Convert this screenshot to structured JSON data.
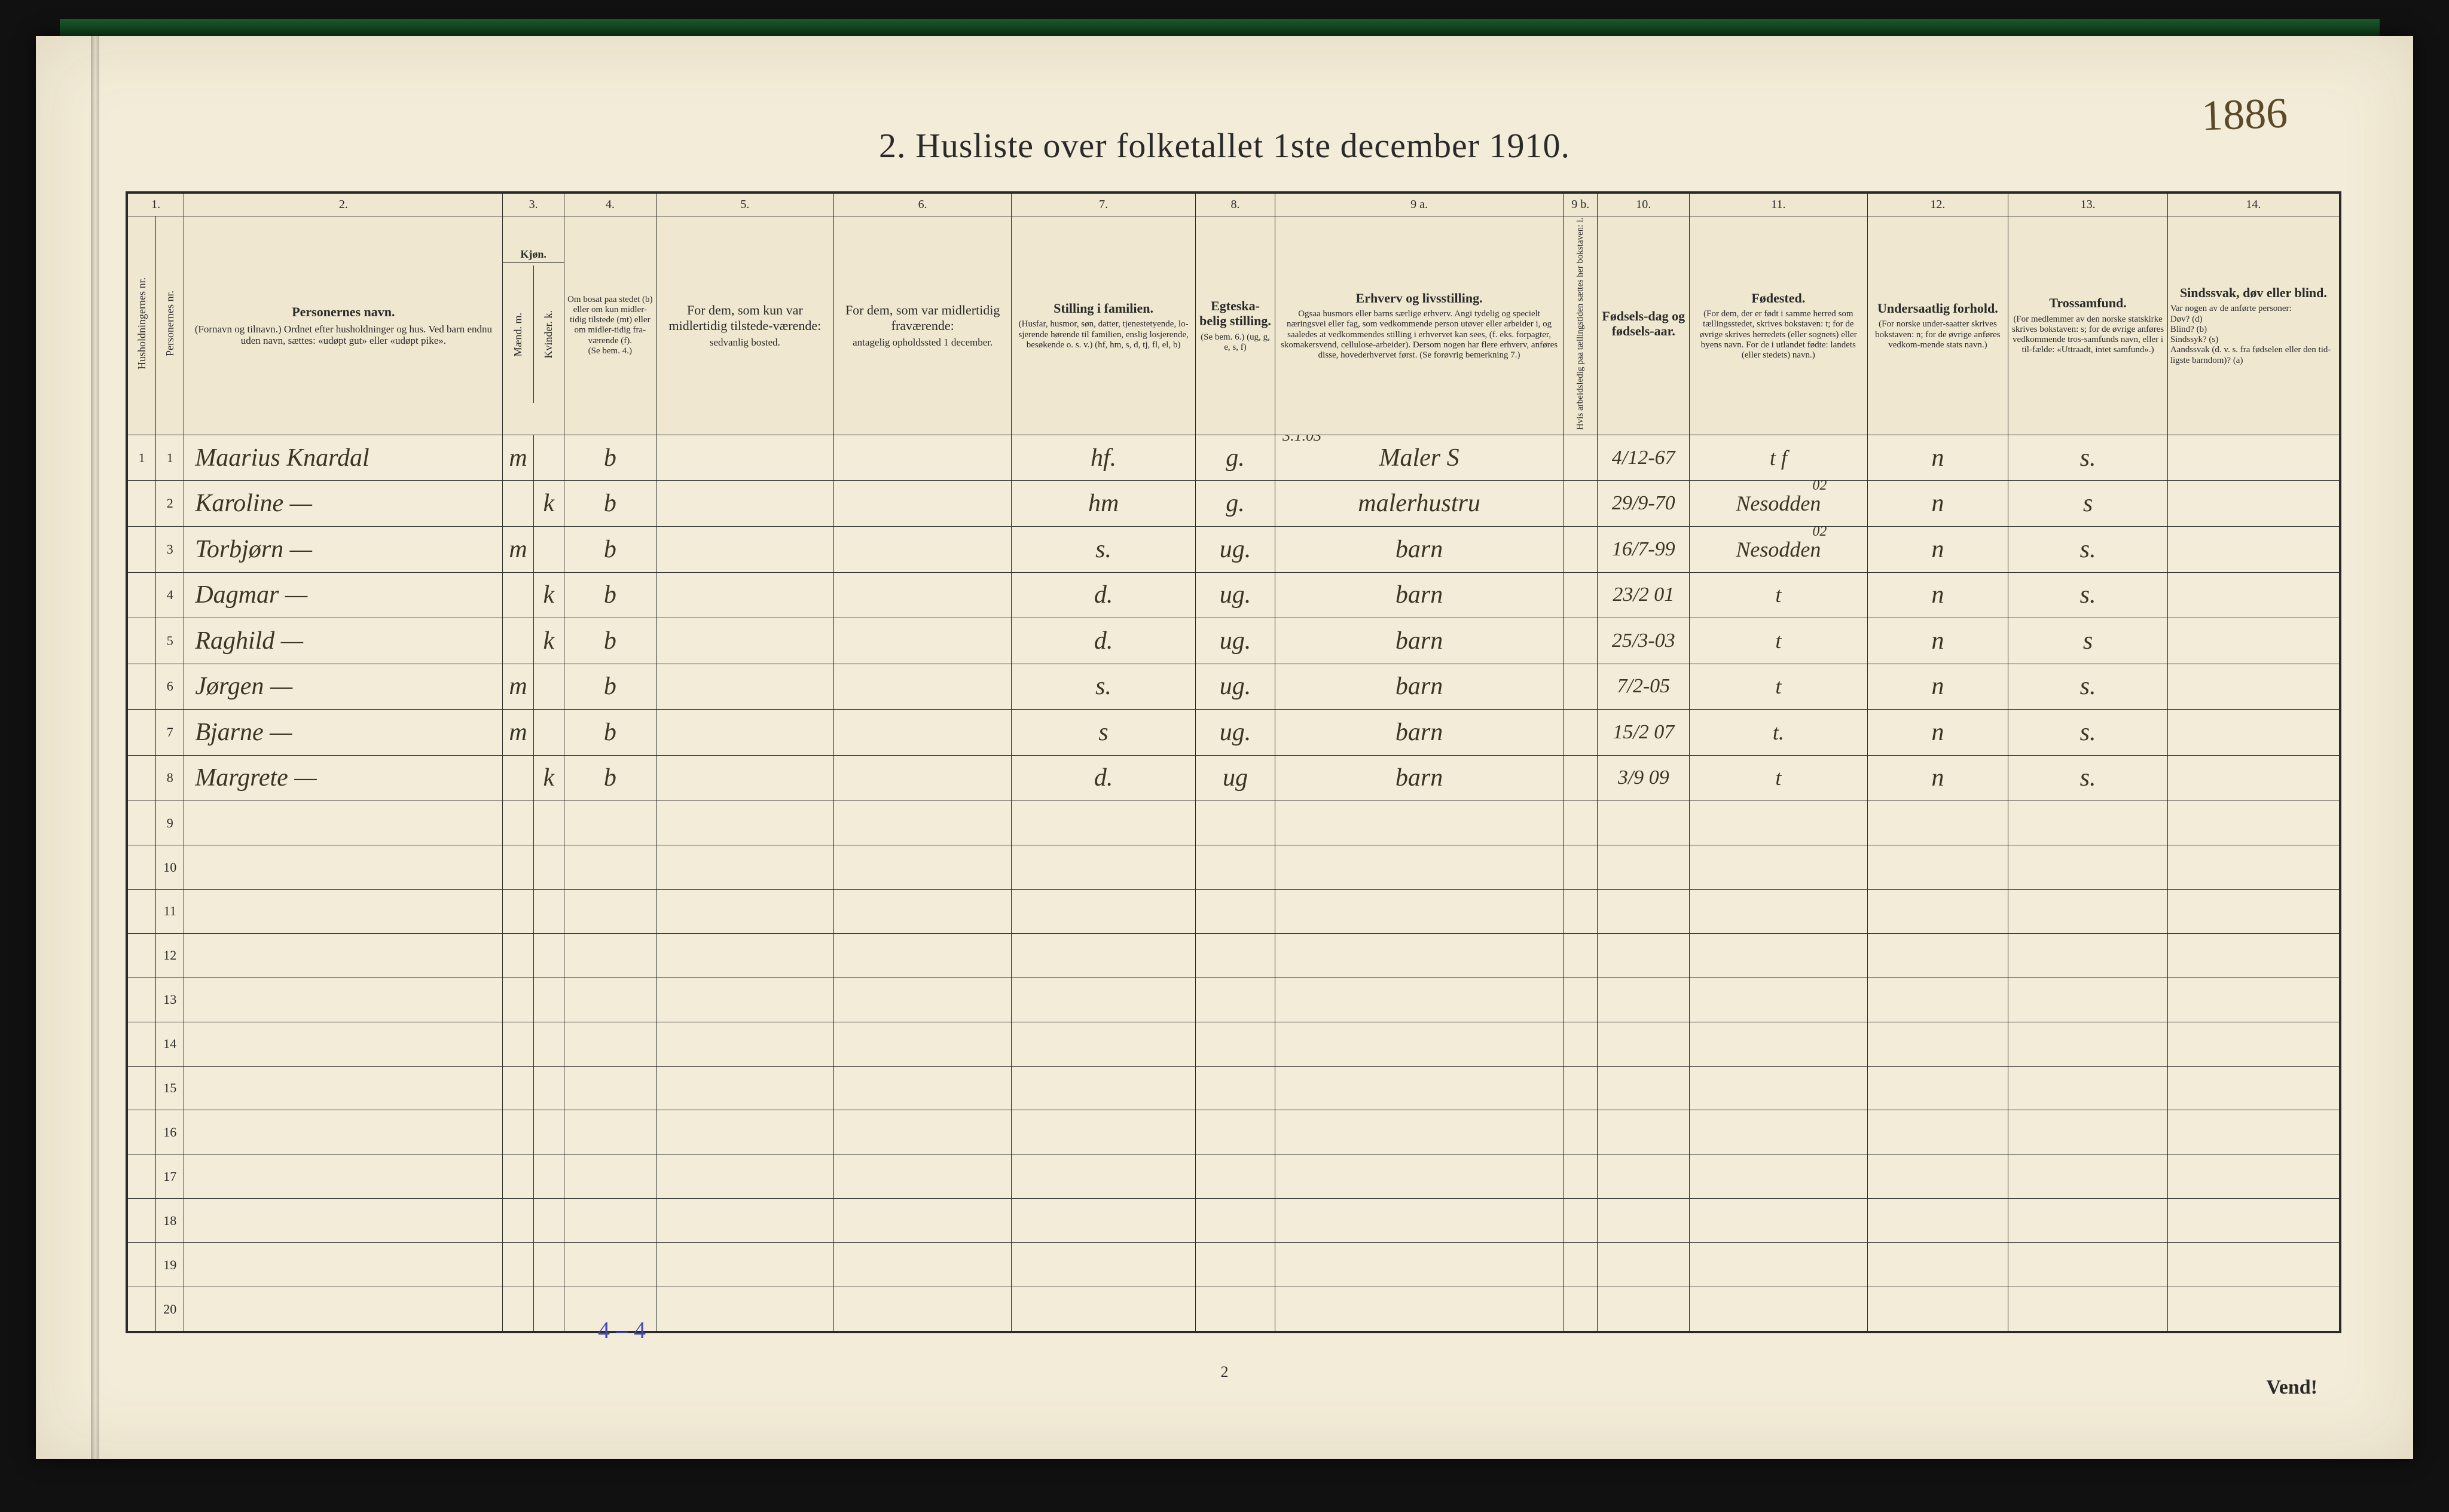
{
  "page_number_handwritten": "1886",
  "title": "2.  Husliste over folketallet 1ste december 1910.",
  "footer_page_number": "2",
  "footer_right": "Vend!",
  "tally_note": "4 – 4",
  "col_numbers": [
    "1.",
    "2.",
    "3.",
    "4.",
    "5.",
    "6.",
    "7.",
    "8.",
    "9 a.",
    "9 b.",
    "10.",
    "11.",
    "12.",
    "13.",
    "14."
  ],
  "headers": {
    "c1a": "Husholdningernes nr.",
    "c1b": "Personernes nr.",
    "c2_main": "Personernes navn.",
    "c2_sub": "(Fornavn og tilnavn.)\nOrdnet efter husholdninger og hus.\nVed barn endnu uden navn, sættes: «udøpt gut» eller «udøpt pike».",
    "c3_main": "Kjøn.",
    "c3a": "Mænd.  m.",
    "c3b": "Kvinder.  k.",
    "c4_main": "Om bosat paa stedet (b) eller om kun midler-tidig tilstede (mt) eller om midler-tidig fra-værende (f).",
    "c4_sub": "(Se bem. 4.)",
    "c5_main": "For dem, som kun var midlertidig tilstede-værende:",
    "c5_sub": "sedvanlig bosted.",
    "c6_main": "For dem, som var midlertidig fraværende:",
    "c6_sub": "antagelig opholdssted 1 december.",
    "c7_main": "Stilling i familien.",
    "c7_sub": "(Husfar, husmor, søn, datter, tjenestetyende, lo-sjerende hørende til familien, enslig losjerende, besøkende o. s. v.)\n(hf, hm, s, d, tj, fl, el, b)",
    "c8_main": "Egteska-belig stilling.",
    "c8_sub": "(Se bem. 6.)\n(ug, g, e, s, f)",
    "c9a_main": "Erhverv og livsstilling.",
    "c9a_sub": "Ogsaa husmors eller barns særlige erhverv. Angi tydelig og specielt næringsvei eller fag, som vedkommende person utøver eller arbeider i, og saaledes at vedkommendes stilling i erhvervet kan sees, (f. eks. forpagter, skomakersvend, cellulose-arbeider). Dersom nogen har flere erhverv, anføres disse, hovederhvervet først.\n(Se forøvrig bemerkning 7.)",
    "c9b": "Hvis arbeidsledig paa tællingstiden sættes her bokstaven: l.",
    "c10_main": "Fødsels-dag og fødsels-aar.",
    "c11_main": "Fødested.",
    "c11_sub": "(For dem, der er født i samme herred som tællingsstedet, skrives bokstaven: t; for de øvrige skrives herredets (eller sognets) eller byens navn. For de i utlandet fødte: landets (eller stedets) navn.)",
    "c12_main": "Undersaatlig forhold.",
    "c12_sub": "(For norske under-saatter skrives bokstaven: n; for de øvrige anføres vedkom-mende stats navn.)",
    "c13_main": "Trossamfund.",
    "c13_sub": "(For medlemmer av den norske statskirke skrives bokstaven: s; for de øvrige anføres vedkommende tros-samfunds navn, eller i til-fælde: «Uttraadt, intet samfund».)",
    "c14_main": "Sindssvak, døv eller blind.",
    "c14_sub": "Var nogen av de anførte personer:\nDøv?      (d)\nBlind?    (b)\nSindssyk? (s)\nAandssvak (d. v. s. fra fødselen eller den tid-ligste barndom)? (a)"
  },
  "rows": [
    {
      "hh": "1",
      "pn": "1",
      "name": "Maarius Knardal",
      "sex": "m",
      "res": "b",
      "c5": "",
      "c6": "",
      "fam": "hf.",
      "mar": "g.",
      "occ": "Maler  S",
      "occ_note": "3.1.03",
      "c9b": "",
      "dob": "4/12-67",
      "birthplace": "t   f",
      "nat": "n",
      "rel": "s.",
      "c14": ""
    },
    {
      "hh": "",
      "pn": "2",
      "name": "Karoline        —",
      "sex": "k",
      "res": "b",
      "c5": "",
      "c6": "",
      "fam": "hm",
      "mar": "g.",
      "occ": "malerhustru",
      "c9b": "",
      "dob": "29/9-70",
      "birthplace": "Nesodden",
      "bp_note": "02",
      "nat": "n",
      "rel": "s",
      "c14": ""
    },
    {
      "hh": "",
      "pn": "3",
      "name": "Torbjørn        —",
      "sex": "m",
      "res": "b",
      "c5": "",
      "c6": "",
      "fam": "s.",
      "mar": "ug.",
      "occ": "barn",
      "c9b": "",
      "dob": "16/7-99",
      "birthplace": "Nesodden",
      "bp_note": "02",
      "nat": "n",
      "rel": "s.",
      "c14": ""
    },
    {
      "hh": "",
      "pn": "4",
      "name": "Dagmar         —",
      "sex": "k",
      "res": "b",
      "c5": "",
      "c6": "",
      "fam": "d.",
      "mar": "ug.",
      "occ": "barn",
      "c9b": "",
      "dob": "23/2 01",
      "birthplace": "t",
      "nat": "n",
      "rel": "s.",
      "c14": ""
    },
    {
      "hh": "",
      "pn": "5",
      "name": "Raghild         —",
      "sex": "k",
      "res": "b",
      "c5": "",
      "c6": "",
      "fam": "d.",
      "mar": "ug.",
      "occ": "barn",
      "c9b": "",
      "dob": "25/3-03",
      "birthplace": "t",
      "nat": "n",
      "rel": "s",
      "c14": ""
    },
    {
      "hh": "",
      "pn": "6",
      "name": "Jørgen          —",
      "sex": "m",
      "res": "b",
      "c5": "",
      "c6": "",
      "fam": "s.",
      "mar": "ug.",
      "occ": "barn",
      "c9b": "",
      "dob": "7/2-05",
      "birthplace": "t",
      "nat": "n",
      "rel": "s.",
      "c14": ""
    },
    {
      "hh": "",
      "pn": "7",
      "name": "Bjarne          —",
      "sex": "m",
      "res": "b",
      "c5": "",
      "c6": "",
      "fam": "s",
      "mar": "ug.",
      "occ": "barn",
      "c9b": "",
      "dob": "15/2 07",
      "birthplace": "t.",
      "nat": "n",
      "rel": "s.",
      "c14": ""
    },
    {
      "hh": "",
      "pn": "8",
      "name": "Margrete       —",
      "sex": "k",
      "res": "b",
      "c5": "",
      "c6": "",
      "fam": "d.",
      "mar": "ug",
      "occ": "barn",
      "c9b": "",
      "dob": "3/9 09",
      "birthplace": "t",
      "nat": "n",
      "rel": "s.",
      "c14": ""
    }
  ],
  "empty_row_numbers": [
    "9",
    "10",
    "11",
    "12",
    "13",
    "14",
    "15",
    "16",
    "17",
    "18",
    "19",
    "20"
  ],
  "colors": {
    "paper": "#f3ecd8",
    "ink": "#2a2a2a",
    "hand_ink": "#3a3626",
    "blue_pencil": "#4848b8",
    "background": "#0a0a0a"
  }
}
